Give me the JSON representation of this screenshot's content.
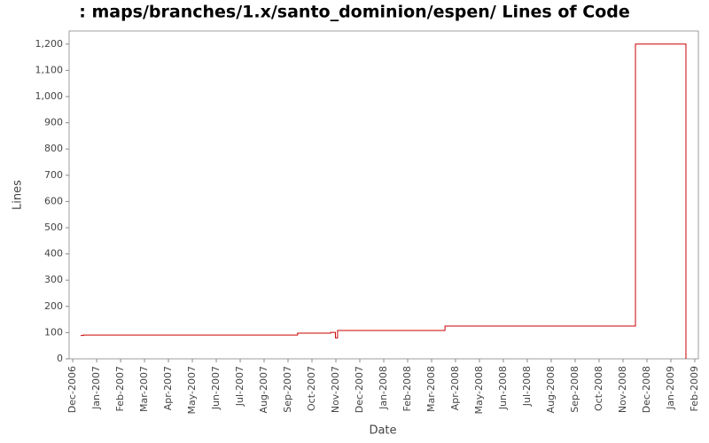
{
  "chart_data": {
    "type": "step",
    "title": ": maps/branches/1.x/santo_dominion/espen/ Lines of Code",
    "x_label": "Date",
    "y_label": "Lines",
    "x": [
      0.33,
      0.45,
      9.4,
      10.78,
      10.98,
      11.07,
      15.56,
      23.52,
      25.63
    ],
    "series": [
      {
        "name": "Lines",
        "color": "#cc0000",
        "values": [
          89,
          91,
          98,
          101,
          80,
          108,
          125,
          1200,
          0
        ]
      }
    ],
    "xlim": [
      -0.15,
      26.15
    ],
    "xticks": [
      {
        "value": 0,
        "label": "Dec-2006"
      },
      {
        "value": 1,
        "label": "Jan-2007"
      },
      {
        "value": 2,
        "label": "Feb-2007"
      },
      {
        "value": 3,
        "label": "Mar-2007"
      },
      {
        "value": 4,
        "label": "Apr-2007"
      },
      {
        "value": 5,
        "label": "May-2007"
      },
      {
        "value": 6,
        "label": "Jun-2007"
      },
      {
        "value": 7,
        "label": "Jul-2007"
      },
      {
        "value": 8,
        "label": "Aug-2007"
      },
      {
        "value": 9,
        "label": "Sep-2007"
      },
      {
        "value": 10,
        "label": "Oct-2007"
      },
      {
        "value": 11,
        "label": "Nov-2007"
      },
      {
        "value": 12,
        "label": "Dec-2007"
      },
      {
        "value": 13,
        "label": "Jan-2008"
      },
      {
        "value": 14,
        "label": "Feb-2008"
      },
      {
        "value": 15,
        "label": "Mar-2008"
      },
      {
        "value": 16,
        "label": "Apr-2008"
      },
      {
        "value": 17,
        "label": "May-2008"
      },
      {
        "value": 18,
        "label": "Jun-2008"
      },
      {
        "value": 19,
        "label": "Jul-2008"
      },
      {
        "value": 20,
        "label": "Aug-2008"
      },
      {
        "value": 21,
        "label": "Sep-2008"
      },
      {
        "value": 22,
        "label": "Oct-2008"
      },
      {
        "value": 23,
        "label": "Nov-2008"
      },
      {
        "value": 24,
        "label": "Dec-2008"
      },
      {
        "value": 25,
        "label": "Jan-2009"
      },
      {
        "value": 26,
        "label": "Feb-2009"
      }
    ],
    "ylim": [
      0,
      1250
    ],
    "yticks": [
      0,
      100,
      200,
      300,
      400,
      500,
      600,
      700,
      800,
      900,
      {
        "value": 1000,
        "label": "1,000"
      },
      {
        "value": 1100,
        "label": "1,100"
      },
      {
        "value": 1200,
        "label": "1,200"
      }
    ],
    "grid": false
  }
}
